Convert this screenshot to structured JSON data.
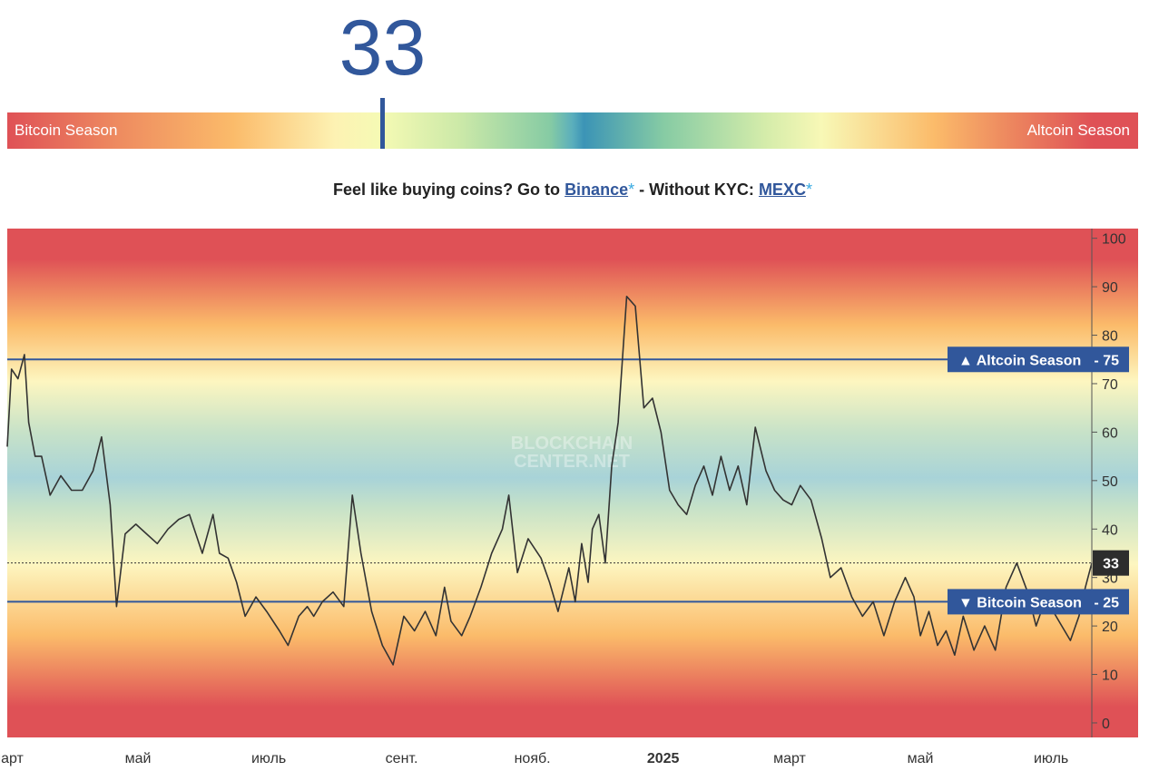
{
  "gauge": {
    "value": "33",
    "left_label": "Bitcoin Season",
    "right_label": "Altcoin Season",
    "value_color": "#31579b"
  },
  "promo": {
    "prefix": "Feel like buying coins? Go to",
    "binance_link": "Binance",
    "star1": "*",
    "middle": " - Without KYC:",
    "mexc_link": "MEXC",
    "star2": "*"
  },
  "watermark": {
    "line1": "BLOCKCHAIN",
    "line2": "CENTER.NET"
  },
  "chart_data": {
    "type": "line",
    "ylim": [
      -3,
      102
    ],
    "yticks": [
      0,
      10,
      20,
      30,
      40,
      50,
      60,
      70,
      80,
      90,
      100
    ],
    "x_domain": [
      "2024-03-01",
      "2025-07-20"
    ],
    "xticks": [
      {
        "date": "2024-03-01",
        "label": "март"
      },
      {
        "date": "2024-05-01",
        "label": "май"
      },
      {
        "date": "2024-07-01",
        "label": "июль"
      },
      {
        "date": "2024-09-01",
        "label": "сент."
      },
      {
        "date": "2024-11-01",
        "label": "нояб."
      },
      {
        "date": "2025-01-01",
        "label": "2025"
      },
      {
        "date": "2025-03-01",
        "label": "март"
      },
      {
        "date": "2025-05-01",
        "label": "май"
      },
      {
        "date": "2025-07-01",
        "label": "июль"
      }
    ],
    "grid": false,
    "reference_lines": [
      {
        "label": "▲ Altcoin Season",
        "value": 75
      },
      {
        "label": "▼ Bitcoin Season",
        "value": 25
      }
    ],
    "current_value": 33,
    "background_colors": [
      "#df5156",
      "#fbbb6a",
      "#fdf6c0",
      "#a8d3d8"
    ],
    "line_color": "#333333",
    "series": [
      {
        "x": [
          "2024-03-01",
          "2024-03-03",
          "2024-03-06",
          "2024-03-09",
          "2024-03-11",
          "2024-03-14",
          "2024-03-17",
          "2024-03-21",
          "2024-03-26",
          "2024-03-31",
          "2024-04-05",
          "2024-04-10",
          "2024-04-14",
          "2024-04-18",
          "2024-04-21",
          "2024-04-25",
          "2024-04-30",
          "2024-05-05",
          "2024-05-10",
          "2024-05-15",
          "2024-05-20",
          "2024-05-25",
          "2024-05-31",
          "2024-06-05",
          "2024-06-08",
          "2024-06-12",
          "2024-06-16",
          "2024-06-20",
          "2024-06-25",
          "2024-06-30",
          "2024-07-06",
          "2024-07-10",
          "2024-07-15",
          "2024-07-19",
          "2024-07-22",
          "2024-07-26",
          "2024-07-31",
          "2024-08-05",
          "2024-08-09",
          "2024-08-13",
          "2024-08-18",
          "2024-08-23",
          "2024-08-28",
          "2024-09-02",
          "2024-09-07",
          "2024-09-12",
          "2024-09-17",
          "2024-09-21",
          "2024-09-24",
          "2024-09-29",
          "2024-10-03",
          "2024-10-08",
          "2024-10-13",
          "2024-10-18",
          "2024-10-21",
          "2024-10-25",
          "2024-10-30",
          "2024-11-05",
          "2024-11-09",
          "2024-11-13",
          "2024-11-18",
          "2024-11-21",
          "2024-11-24",
          "2024-11-27",
          "2024-11-29",
          "2024-12-02",
          "2024-12-05",
          "2024-12-08",
          "2024-12-11",
          "2024-12-15",
          "2024-12-19",
          "2024-12-23",
          "2024-12-27",
          "2024-12-31",
          "2025-01-04",
          "2025-01-08",
          "2025-01-12",
          "2025-01-16",
          "2025-01-20",
          "2025-01-24",
          "2025-01-28",
          "2025-02-01",
          "2025-02-05",
          "2025-02-09",
          "2025-02-13",
          "2025-02-18",
          "2025-02-22",
          "2025-02-26",
          "2025-03-02",
          "2025-03-06",
          "2025-03-11",
          "2025-03-16",
          "2025-03-20",
          "2025-03-25",
          "2025-03-30",
          "2025-04-04",
          "2025-04-09",
          "2025-04-14",
          "2025-04-19",
          "2025-04-24",
          "2025-04-28",
          "2025-05-01",
          "2025-05-05",
          "2025-05-09",
          "2025-05-13",
          "2025-05-17",
          "2025-05-21",
          "2025-05-26",
          "2025-05-31",
          "2025-06-05",
          "2025-06-10",
          "2025-06-15",
          "2025-06-20",
          "2025-06-24",
          "2025-06-28",
          "2025-07-02",
          "2025-07-06",
          "2025-07-10",
          "2025-07-14",
          "2025-07-17",
          "2025-07-20"
        ],
        "y": [
          57,
          73,
          71,
          76,
          62,
          55,
          55,
          47,
          51,
          48,
          48,
          52,
          59,
          45,
          24,
          39,
          41,
          39,
          37,
          40,
          42,
          43,
          35,
          43,
          35,
          34,
          29,
          22,
          26,
          23,
          19,
          16,
          22,
          24,
          22,
          25,
          27,
          24,
          47,
          35,
          23,
          16,
          12,
          22,
          19,
          23,
          18,
          28,
          21,
          18,
          22,
          28,
          35,
          40,
          47,
          31,
          38,
          34,
          29,
          23,
          32,
          25,
          37,
          29,
          40,
          43,
          33,
          53,
          62,
          88,
          86,
          65,
          67,
          60,
          48,
          45,
          43,
          49,
          53,
          47,
          55,
          48,
          53,
          45,
          61,
          52,
          48,
          46,
          45,
          49,
          46,
          38,
          30,
          32,
          26,
          22,
          25,
          18,
          25,
          30,
          26,
          18,
          23,
          16,
          19,
          14,
          22,
          15,
          20,
          15,
          28,
          33,
          27,
          20,
          25,
          23,
          20,
          17,
          22,
          28,
          33
        ]
      }
    ]
  }
}
